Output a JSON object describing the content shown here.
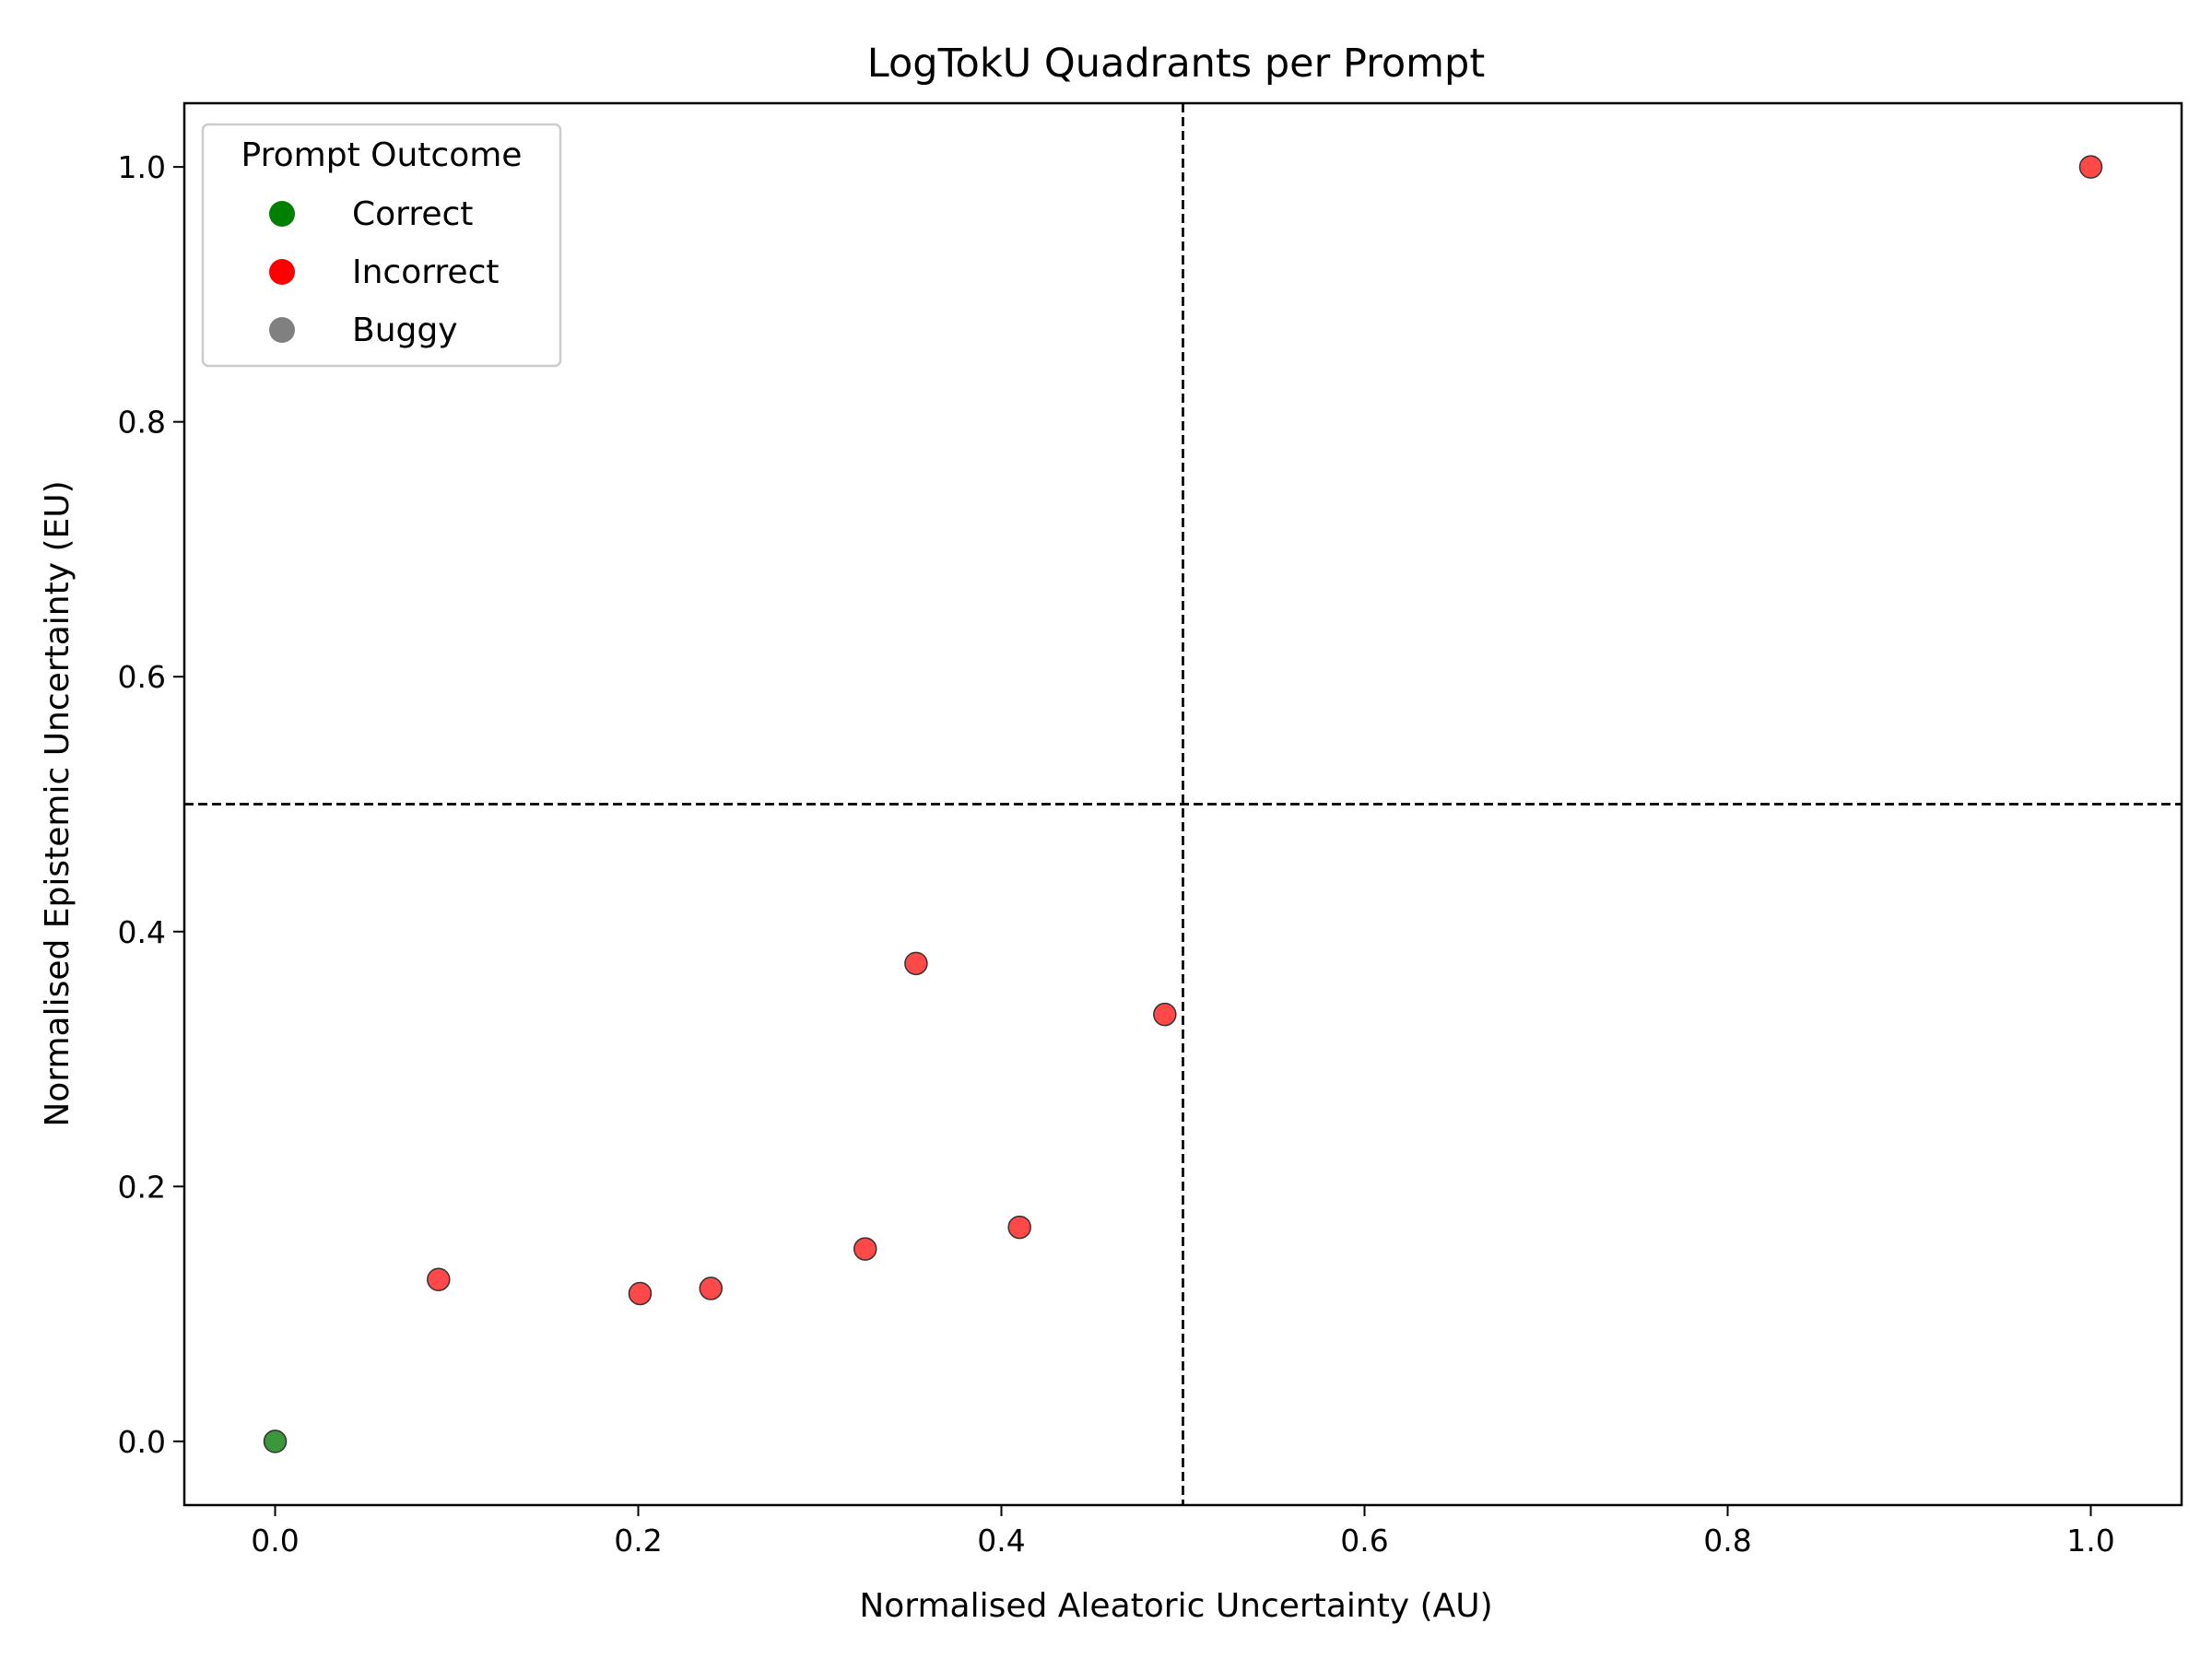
{
  "chart_data": {
    "type": "scatter",
    "title": "LogTokU Quadrants per Prompt",
    "xlabel": "Normalised Aleatoric Uncertainty (AU)",
    "ylabel": "Normalised Epistemic Uncertainty (EU)",
    "xlim": [
      -0.05,
      1.05
    ],
    "ylim": [
      -0.05,
      1.05
    ],
    "xticks": [
      "0.0",
      "0.2",
      "0.4",
      "0.6",
      "0.8",
      "1.0"
    ],
    "yticks": [
      "0.0",
      "0.2",
      "0.4",
      "0.6",
      "0.8",
      "1.0"
    ],
    "thresholds": {
      "x": 0.5,
      "y": 0.5
    },
    "grid": false,
    "legend": {
      "title": "Prompt Outcome",
      "placement": "top-left",
      "entries": [
        {
          "label": "Correct",
          "color": "#008000"
        },
        {
          "label": "Incorrect",
          "color": "#ff0000"
        },
        {
          "label": "Buggy",
          "color": "#808080"
        }
      ]
    },
    "series": [
      {
        "outcome": "Correct",
        "color": "#3c963c",
        "points": [
          {
            "x": 0.0,
            "y": 0.0
          }
        ]
      },
      {
        "outcome": "Incorrect",
        "color": "#ff4848",
        "points": [
          {
            "x": 0.09,
            "y": 0.127
          },
          {
            "x": 0.201,
            "y": 0.116
          },
          {
            "x": 0.24,
            "y": 0.12
          },
          {
            "x": 0.325,
            "y": 0.151
          },
          {
            "x": 0.353,
            "y": 0.375
          },
          {
            "x": 0.41,
            "y": 0.168
          },
          {
            "x": 0.49,
            "y": 0.335
          },
          {
            "x": 1.0,
            "y": 1.0
          }
        ]
      },
      {
        "outcome": "Buggy",
        "color": "#808080",
        "points": []
      }
    ]
  }
}
